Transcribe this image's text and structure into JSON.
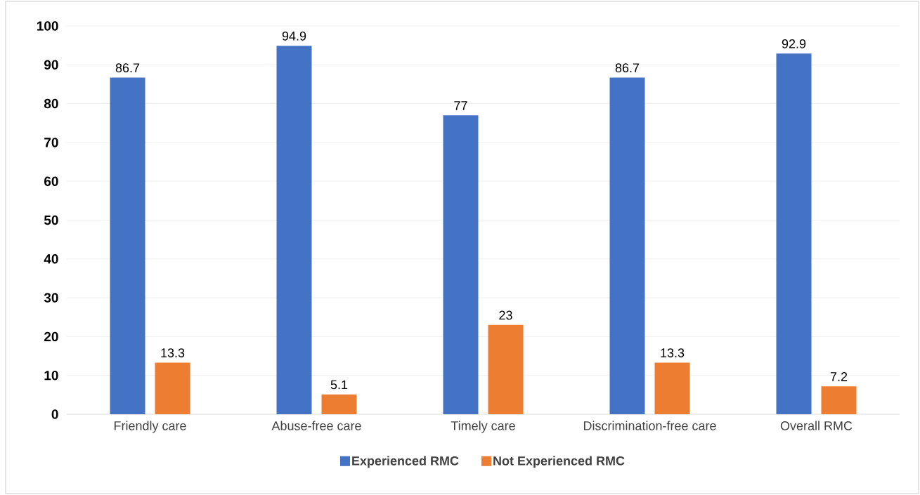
{
  "chart_data": {
    "type": "bar",
    "categories": [
      "Friendly care",
      "Abuse-free care",
      "Timely care",
      "Discrimination-free care",
      "Overall RMC"
    ],
    "series": [
      {
        "name": "Experienced RMC",
        "color": "#4472c4",
        "values": [
          86.7,
          94.9,
          77,
          86.7,
          92.9
        ]
      },
      {
        "name": "Not Experienced RMC",
        "color": "#ed7d31",
        "values": [
          13.3,
          5.1,
          23,
          13.3,
          7.2
        ]
      }
    ],
    "ylim": [
      0,
      100
    ],
    "yticks": [
      0,
      10,
      20,
      30,
      40,
      50,
      60,
      70,
      80,
      90,
      100
    ],
    "grid": "y",
    "legend": "bottom",
    "data_labels": true
  }
}
